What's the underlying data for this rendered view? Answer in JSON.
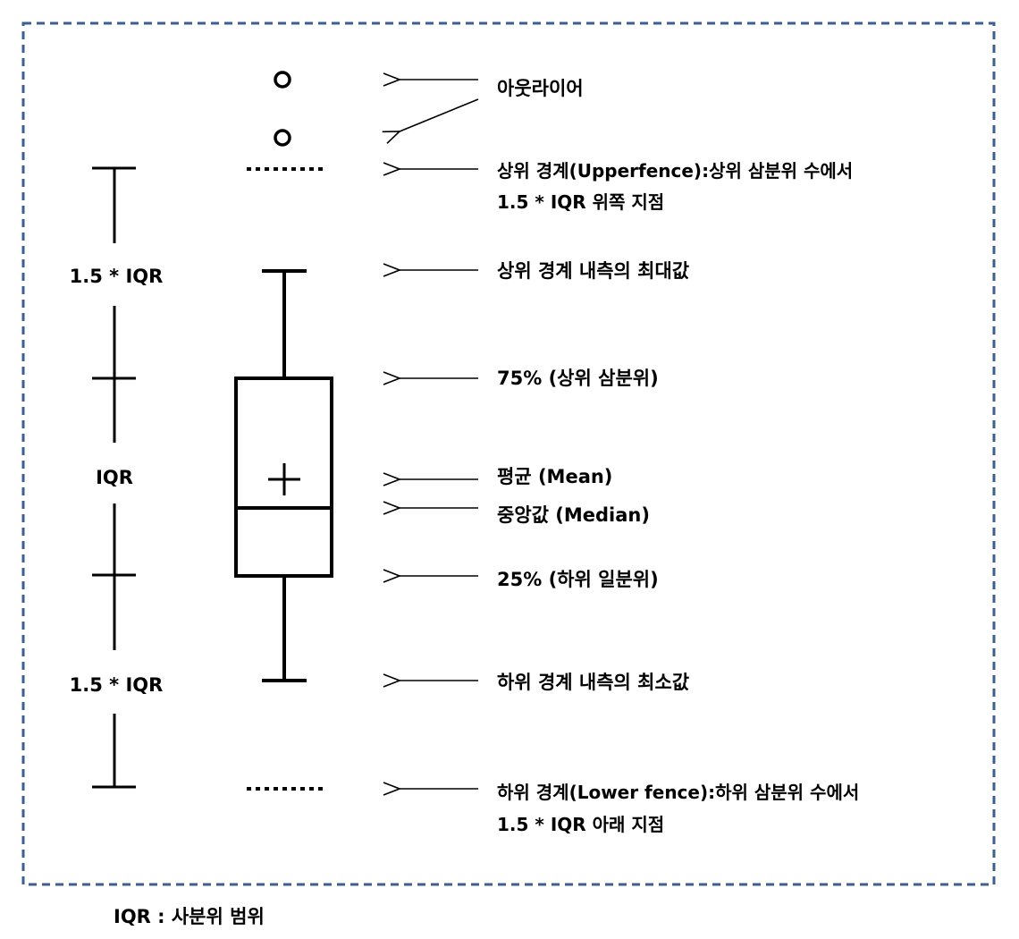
{
  "labels": {
    "outlier": "아웃라이어",
    "upper_fence_line1": "상위 경계(Upperfence):상위 삼분위 수에서",
    "upper_fence_line2": "1.5 * IQR 위쪽 지점",
    "upper_max": "상위 경계 내측의 최대값",
    "q3": "75% (상위 삼분위)",
    "mean": "평균 (Mean)",
    "median": "중앙값 (Median)",
    "q1": "25% (하위 일분위)",
    "lower_min": "하위 경계 내측의 최소값",
    "lower_fence_line1": "하위 경계(Lower fence):하위 삼분위 수에서",
    "lower_fence_line2": "1.5 * IQR 아래 지점"
  },
  "ruler": {
    "upper_span": "1.5 * IQR",
    "middle_span": "IQR",
    "lower_span": "1.5 * IQR"
  },
  "footnote": "IQR : 사분위 범위",
  "colors": {
    "frame_dash": "#3d5f8f",
    "stroke": "#000000"
  }
}
